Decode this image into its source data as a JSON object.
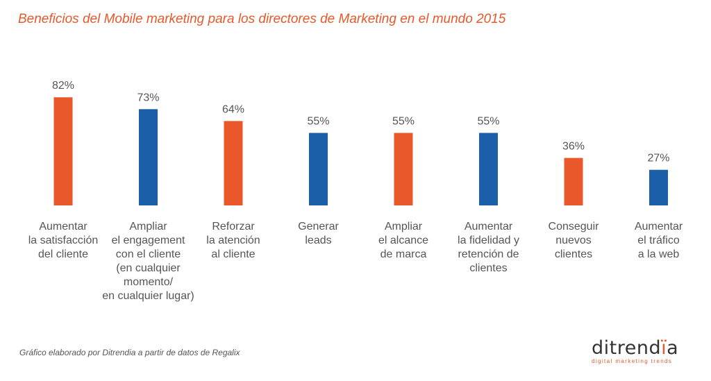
{
  "title": "Beneficios del Mobile marketing para los directores de Marketing en el mundo 2015",
  "footnote": "Gráfico elaborado por Ditrendia a partir de datos de Regalix",
  "logo": {
    "main": "ditrendia",
    "main_start": "ditrend",
    "main_accent": "ï",
    "main_end": "a",
    "tagline": "digital marketing trends"
  },
  "colors": {
    "orange": "#e8582a",
    "blue": "#1b5fa8",
    "label": "#555555"
  },
  "chart_data": {
    "type": "bar",
    "categories": [
      "Aumentar\nla satisfacción\ndel cliente",
      "Ampliar\nel engagement\ncon el cliente\n(en cualquier\nmomento/\nen cualquier lugar)",
      "Reforzar\nla atención\nal cliente",
      "Generar\nleads",
      "Ampliar\nel alcance\nde marca",
      "Aumentar\nla fidelidad y\nretención de\nclientes",
      "Conseguir\nnuevos\nclientes",
      "Aumentar\nel tráfico\na la web"
    ],
    "values": [
      82,
      73,
      64,
      55,
      55,
      55,
      36,
      27
    ],
    "value_labels": [
      "82%",
      "73%",
      "64%",
      "55%",
      "55%",
      "55%",
      "36%",
      "27%"
    ],
    "bar_colors": [
      "#e8582a",
      "#1b5fa8",
      "#e8582a",
      "#1b5fa8",
      "#e8582a",
      "#1b5fa8",
      "#e8582a",
      "#1b5fa8"
    ],
    "ylim": [
      0,
      100
    ],
    "grid": false,
    "legend": "none"
  }
}
